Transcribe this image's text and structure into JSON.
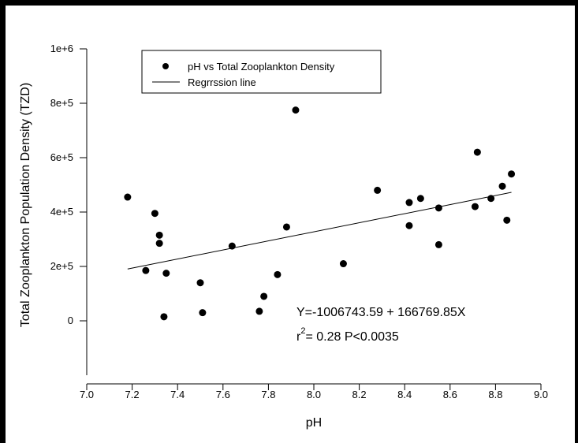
{
  "chart_data": {
    "type": "scatter",
    "xlabel": "pH",
    "ylabel": "Total Zooplankton Population Density (TZD)",
    "xlim": [
      7.0,
      9.0
    ],
    "ylim": [
      -200000,
      1000000
    ],
    "x_ticks": [
      "7.0",
      "7.2",
      "7.4",
      "7.6",
      "7.8",
      "8.0",
      "8.2",
      "8.4",
      "8.6",
      "8.8",
      "9.0"
    ],
    "y_ticks": [
      {
        "value": 0,
        "label": "0"
      },
      {
        "value": 200000,
        "label": "2e+5"
      },
      {
        "value": 400000,
        "label": "4e+5"
      },
      {
        "value": 600000,
        "label": "6e+5"
      },
      {
        "value": 800000,
        "label": "8e+5"
      },
      {
        "value": 1000000,
        "label": "1e+6"
      }
    ],
    "grid": false,
    "legend_position": "top-left",
    "series": [
      {
        "name": "pH vs Total Zooplankton Density",
        "kind": "points",
        "points": [
          [
            7.18,
            455000
          ],
          [
            7.26,
            185000
          ],
          [
            7.3,
            395000
          ],
          [
            7.32,
            315000
          ],
          [
            7.32,
            285000
          ],
          [
            7.34,
            15000
          ],
          [
            7.35,
            175000
          ],
          [
            7.5,
            140000
          ],
          [
            7.51,
            30000
          ],
          [
            7.64,
            275000
          ],
          [
            7.76,
            35000
          ],
          [
            7.78,
            90000
          ],
          [
            7.84,
            170000
          ],
          [
            7.88,
            345000
          ],
          [
            7.92,
            775000
          ],
          [
            8.13,
            210000
          ],
          [
            8.28,
            480000
          ],
          [
            8.42,
            435000
          ],
          [
            8.42,
            350000
          ],
          [
            8.47,
            450000
          ],
          [
            8.55,
            415000
          ],
          [
            8.55,
            280000
          ],
          [
            8.71,
            420000
          ],
          [
            8.72,
            620000
          ],
          [
            8.78,
            450000
          ],
          [
            8.83,
            495000
          ],
          [
            8.85,
            370000
          ],
          [
            8.87,
            540000
          ]
        ]
      },
      {
        "name": "Regrrssion line",
        "kind": "line",
        "points": [
          [
            7.18,
            190600
          ],
          [
            8.87,
            472400
          ]
        ]
      }
    ],
    "annotations": {
      "equation": "Y=-1006743.59 + 166769.85X",
      "r2_prefix": "r",
      "r2_sup": "2",
      "r2_rest": "= 0.28 P<0.0035"
    }
  }
}
